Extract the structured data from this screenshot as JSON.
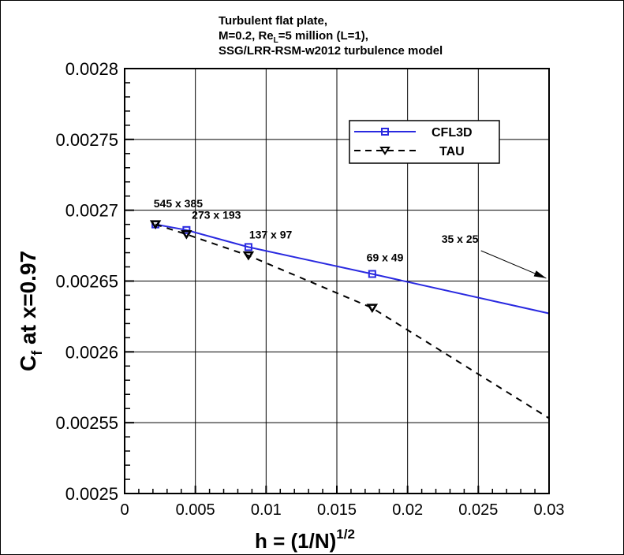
{
  "chart_data": {
    "type": "line",
    "title_lines": [
      "Turbulent flat plate,",
      "M=0.2, Re",
      "L",
      "=5 million (L=1),",
      "SSG/LRR-RSM-w2012 turbulence model"
    ],
    "xlabel": "h = (1/N)",
    "xlabel_sup": "1/2",
    "ylabel": "C",
    "ylabel_sub": "f",
    "ylabel_rest": " at x=0.97",
    "xlim": [
      0,
      0.03
    ],
    "ylim": [
      0.0025,
      0.0028
    ],
    "xticks": [
      0,
      0.005,
      0.01,
      0.015,
      0.02,
      0.025,
      0.03
    ],
    "xtick_labels": [
      "0",
      "0.005",
      "0.01",
      "0.015",
      "0.02",
      "0.025",
      "0.03"
    ],
    "yticks": [
      0.0025,
      0.00255,
      0.0026,
      0.00265,
      0.0027,
      0.00275,
      0.0028
    ],
    "ytick_labels": [
      "0.0025",
      "0.00255",
      "0.0026",
      "0.00265",
      "0.0027",
      "0.00275",
      "0.0028"
    ],
    "grid": true,
    "legend_position": "top-right",
    "series": [
      {
        "name": "CFL3D",
        "color": "#2a2ae0",
        "dash": "solid",
        "marker": "square",
        "x": [
          0.00218,
          0.00437,
          0.00875,
          0.0175,
          0.035
        ],
        "y": [
          0.00269,
          0.002686,
          0.002674,
          0.002655,
          0.002616
        ]
      },
      {
        "name": "TAU",
        "color": "#000000",
        "dash": "dashed",
        "marker": "triangle-down",
        "x": [
          0.00218,
          0.00437,
          0.00875,
          0.0175,
          0.035
        ],
        "y": [
          0.00269,
          0.002683,
          0.002668,
          0.002631,
          0.002522
        ]
      }
    ],
    "annotations": [
      {
        "text": "545 x 385",
        "x": 0.00205,
        "y": 0.002702
      },
      {
        "text": "273 x 193",
        "x": 0.00475,
        "y": 0.002694
      },
      {
        "text": "137 x 97",
        "x": 0.0088,
        "y": 0.00268
      },
      {
        "text": "69 x 49",
        "x": 0.0171,
        "y": 0.002664
      },
      {
        "text": "35 x 25",
        "x": 0.0224,
        "y": 0.002677,
        "arrow_to": [
          0.0298,
          0.002652
        ]
      }
    ]
  }
}
